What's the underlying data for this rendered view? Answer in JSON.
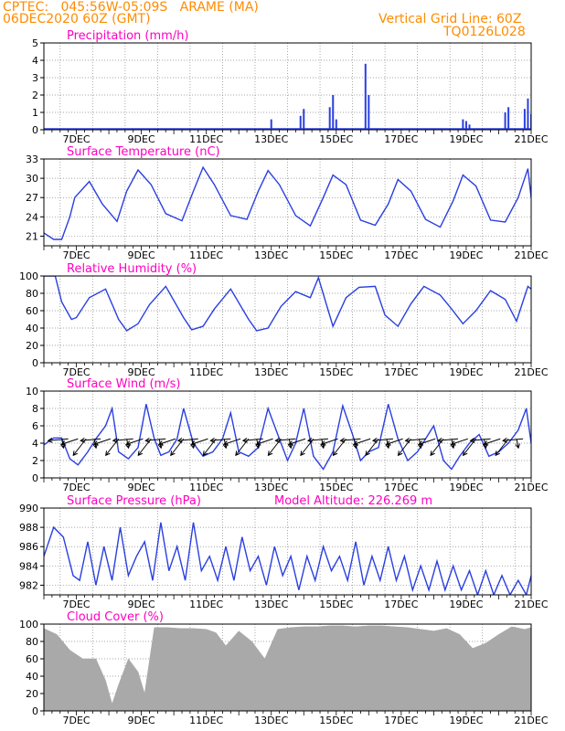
{
  "header": {
    "line1_left": "CPTEC:   045:56W-05:09S   ARAME (MA)",
    "line2_left": "06DEC2020 60Z (GMT)",
    "line1_right": "Vertical Grid Line: 60Z",
    "line2_right": "TQ0126L028",
    "color": "#ff8c00"
  },
  "colors": {
    "title": "#ff00c0",
    "series": "#2a3fe0",
    "cloud": "#a9a9a9",
    "arrow": "#000000"
  },
  "x_tick_labels": [
    "7DEC",
    "9DEC",
    "11DEC",
    "13DEC",
    "15DEC",
    "17DEC",
    "19DEC",
    "21DEC"
  ],
  "chart_data": [
    {
      "id": "precip",
      "type": "bar",
      "title": "Precipitation (mm/h)",
      "ylim": [
        0,
        5
      ],
      "yticks": [
        0,
        1,
        2,
        3,
        4,
        5
      ],
      "x": [
        13.0,
        13.9,
        14.0,
        14.8,
        14.9,
        15.0,
        15.9,
        16.0,
        18.9,
        19.0,
        19.1,
        20.2,
        20.3,
        20.8,
        20.9,
        21.0
      ],
      "values": [
        0.6,
        0.8,
        1.2,
        1.3,
        2.0,
        0.6,
        3.8,
        2.0,
        0.6,
        0.5,
        0.3,
        1.0,
        1.3,
        1.2,
        1.8,
        0.9
      ]
    },
    {
      "id": "temp",
      "type": "line",
      "title": "Surface Temperature (nC)",
      "ylim": [
        19.5,
        33
      ],
      "yticks": [
        21,
        24,
        27,
        30,
        33
      ],
      "x": [
        6.0,
        6.3,
        6.55,
        6.8,
        6.95,
        7.4,
        7.8,
        8.25,
        8.55,
        8.9,
        9.3,
        9.75,
        10.25,
        10.6,
        10.9,
        11.25,
        11.75,
        12.25,
        12.6,
        12.9,
        13.25,
        13.75,
        14.2,
        14.6,
        14.9,
        15.3,
        15.75,
        16.2,
        16.6,
        16.9,
        17.3,
        17.75,
        18.2,
        18.6,
        18.9,
        19.3,
        19.75,
        20.2,
        20.6,
        20.9,
        21.0
      ],
      "values": [
        21.5,
        20.5,
        20.5,
        24,
        27,
        29.5,
        26,
        23.3,
        28,
        31.3,
        29,
        24.5,
        23.4,
        28,
        31.7,
        29,
        24.2,
        23.6,
        28,
        31.2,
        29,
        24.2,
        22.6,
        27,
        30.5,
        29,
        23.5,
        22.7,
        26,
        29.8,
        28,
        23.6,
        22.4,
        26.5,
        30.5,
        28.8,
        23.5,
        23.2,
        27,
        31.5,
        27
      ]
    },
    {
      "id": "rh",
      "type": "line",
      "title": "Relative Humidity (%)",
      "ylim": [
        0,
        100
      ],
      "yticks": [
        0,
        20,
        40,
        60,
        80,
        100
      ],
      "x": [
        6.0,
        6.35,
        6.55,
        6.85,
        7.0,
        7.4,
        7.9,
        8.3,
        8.55,
        8.9,
        9.25,
        9.75,
        10.3,
        10.55,
        10.9,
        11.25,
        11.75,
        12.3,
        12.55,
        12.9,
        13.3,
        13.75,
        14.2,
        14.45,
        14.9,
        15.3,
        15.7,
        16.2,
        16.5,
        16.9,
        17.3,
        17.7,
        18.2,
        18.55,
        18.9,
        19.3,
        19.75,
        20.2,
        20.55,
        20.9,
        21.0
      ],
      "values": [
        100,
        100,
        70,
        50,
        52,
        75,
        85,
        50,
        37,
        45,
        67,
        88,
        52,
        38,
        42,
        62,
        85,
        50,
        37,
        40,
        65,
        82,
        75,
        98,
        42,
        75,
        87,
        88,
        55,
        42,
        68,
        88,
        78,
        62,
        45,
        60,
        83,
        73,
        48,
        88,
        85
      ]
    },
    {
      "id": "wind",
      "type": "line",
      "title": "Surface Wind (m/s)",
      "ylim": [
        0,
        10
      ],
      "yticks": [
        0,
        2,
        4,
        6,
        8,
        10
      ],
      "x": [
        6.0,
        6.3,
        6.55,
        6.8,
        7.05,
        7.35,
        7.6,
        7.9,
        8.1,
        8.3,
        8.6,
        8.9,
        9.15,
        9.4,
        9.6,
        9.85,
        10.1,
        10.3,
        10.6,
        10.9,
        11.2,
        11.5,
        11.75,
        12.0,
        12.3,
        12.6,
        12.9,
        13.2,
        13.5,
        13.75,
        14.0,
        14.3,
        14.6,
        14.9,
        15.2,
        15.5,
        15.75,
        16.0,
        16.3,
        16.6,
        16.9,
        17.2,
        17.5,
        17.75,
        18.0,
        18.3,
        18.55,
        18.8,
        19.1,
        19.4,
        19.7,
        20.0,
        20.3,
        20.6,
        20.85,
        21.0
      ],
      "values": [
        3.8,
        4.6,
        4.6,
        2.2,
        1.5,
        3.0,
        4.5,
        6.0,
        8.0,
        3.0,
        2.2,
        3.5,
        8.5,
        4.5,
        2.6,
        3.0,
        4.5,
        8.0,
        4.0,
        2.5,
        3.0,
        4.5,
        7.5,
        3.0,
        2.5,
        3.5,
        8.0,
        5.0,
        2.0,
        4.0,
        8.0,
        2.5,
        1.0,
        3.0,
        8.3,
        5.0,
        2.0,
        3.0,
        3.5,
        8.5,
        4.5,
        2.0,
        3.0,
        4.5,
        6.0,
        2.0,
        1.0,
        2.5,
        4.0,
        5.0,
        2.5,
        3.0,
        4.0,
        5.5,
        8.0,
        4.0
      ]
    },
    {
      "id": "pres",
      "type": "line",
      "title": "Surface Pressure (hPa)",
      "annotation": "Model Altitude: 226.269  m",
      "ylim": [
        981,
        990
      ],
      "yticks": [
        982,
        984,
        986,
        988,
        990
      ],
      "x": [
        6.0,
        6.3,
        6.6,
        6.9,
        7.1,
        7.35,
        7.6,
        7.85,
        8.1,
        8.35,
        8.6,
        8.85,
        9.1,
        9.35,
        9.6,
        9.85,
        10.1,
        10.35,
        10.6,
        10.85,
        11.1,
        11.35,
        11.6,
        11.85,
        12.1,
        12.35,
        12.6,
        12.85,
        13.1,
        13.35,
        13.6,
        13.85,
        14.1,
        14.35,
        14.6,
        14.85,
        15.1,
        15.35,
        15.6,
        15.85,
        16.1,
        16.35,
        16.6,
        16.85,
        17.1,
        17.35,
        17.6,
        17.85,
        18.1,
        18.35,
        18.6,
        18.85,
        19.1,
        19.35,
        19.6,
        19.85,
        20.1,
        20.35,
        20.6,
        20.85,
        21.0
      ],
      "values": [
        985,
        988,
        987,
        983,
        982.5,
        986.5,
        982,
        986,
        982.5,
        988,
        983,
        985,
        986.5,
        982.5,
        988.5,
        983.5,
        986,
        982.5,
        988.5,
        983.5,
        985,
        982.5,
        986,
        982.5,
        987,
        983.5,
        985,
        982,
        986,
        983,
        985,
        981.5,
        985,
        982.5,
        986,
        983.5,
        985,
        982.5,
        986.5,
        982,
        985,
        982.5,
        986,
        982.5,
        985,
        981.5,
        984,
        981.5,
        984.5,
        981.5,
        984,
        981.5,
        983.5,
        981,
        983.5,
        981,
        983,
        981,
        982.5,
        981,
        983
      ]
    },
    {
      "id": "cloud",
      "type": "area",
      "title": "Cloud Cover (%)",
      "ylim": [
        0,
        100
      ],
      "yticks": [
        0,
        20,
        40,
        60,
        80,
        100
      ],
      "x": [
        6.0,
        6.4,
        6.8,
        7.2,
        7.6,
        7.9,
        8.1,
        8.3,
        8.6,
        8.9,
        9.1,
        9.4,
        9.8,
        10.2,
        10.6,
        11.0,
        11.3,
        11.6,
        12.0,
        12.4,
        12.8,
        13.2,
        13.6,
        14.0,
        14.4,
        14.8,
        15.2,
        15.6,
        16.0,
        16.4,
        16.8,
        17.2,
        17.6,
        18.0,
        18.4,
        18.8,
        19.2,
        19.6,
        20.0,
        20.4,
        20.8,
        21.0
      ],
      "values": [
        95,
        88,
        70,
        60,
        60,
        35,
        8,
        30,
        60,
        45,
        20,
        96,
        96,
        95,
        95,
        94,
        90,
        75,
        92,
        80,
        60,
        94,
        96,
        97,
        97,
        98,
        98,
        97,
        98,
        98,
        97,
        96,
        94,
        92,
        95,
        88,
        72,
        78,
        88,
        97,
        94,
        96
      ]
    }
  ]
}
